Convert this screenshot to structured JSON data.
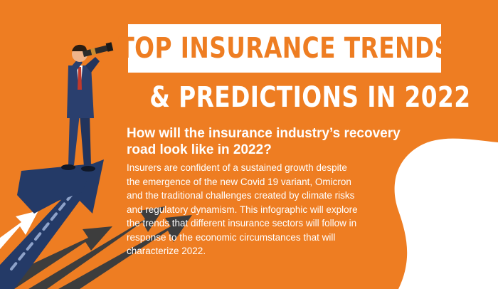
{
  "header": {
    "title_line1": "TOP INSURANCE TRENDS",
    "title_line2": "& PREDICTIONS IN 2022"
  },
  "intro": {
    "question": "How will the insurance industry’s recovery road look like in 2022?",
    "paragraph": "Insurers are confident of a sustained growth despite the emergence of the new Covid 19 variant, Omicron and the traditional challenges created by climate risks and regulatory dynamism. This infographic will explore the trends that different insurance sectors will follow in response to the economic circumstances that will characterize 2022."
  },
  "colors": {
    "background": "#ee7d22",
    "title_box": "#ffffff",
    "arrow_navy": "#243a67",
    "arrow_gray": "#3d3d3d",
    "suit": "#2a3f6e"
  },
  "illustration": {
    "figure": "businessman-with-telescope",
    "arrows": "upward-growth-arrows"
  }
}
